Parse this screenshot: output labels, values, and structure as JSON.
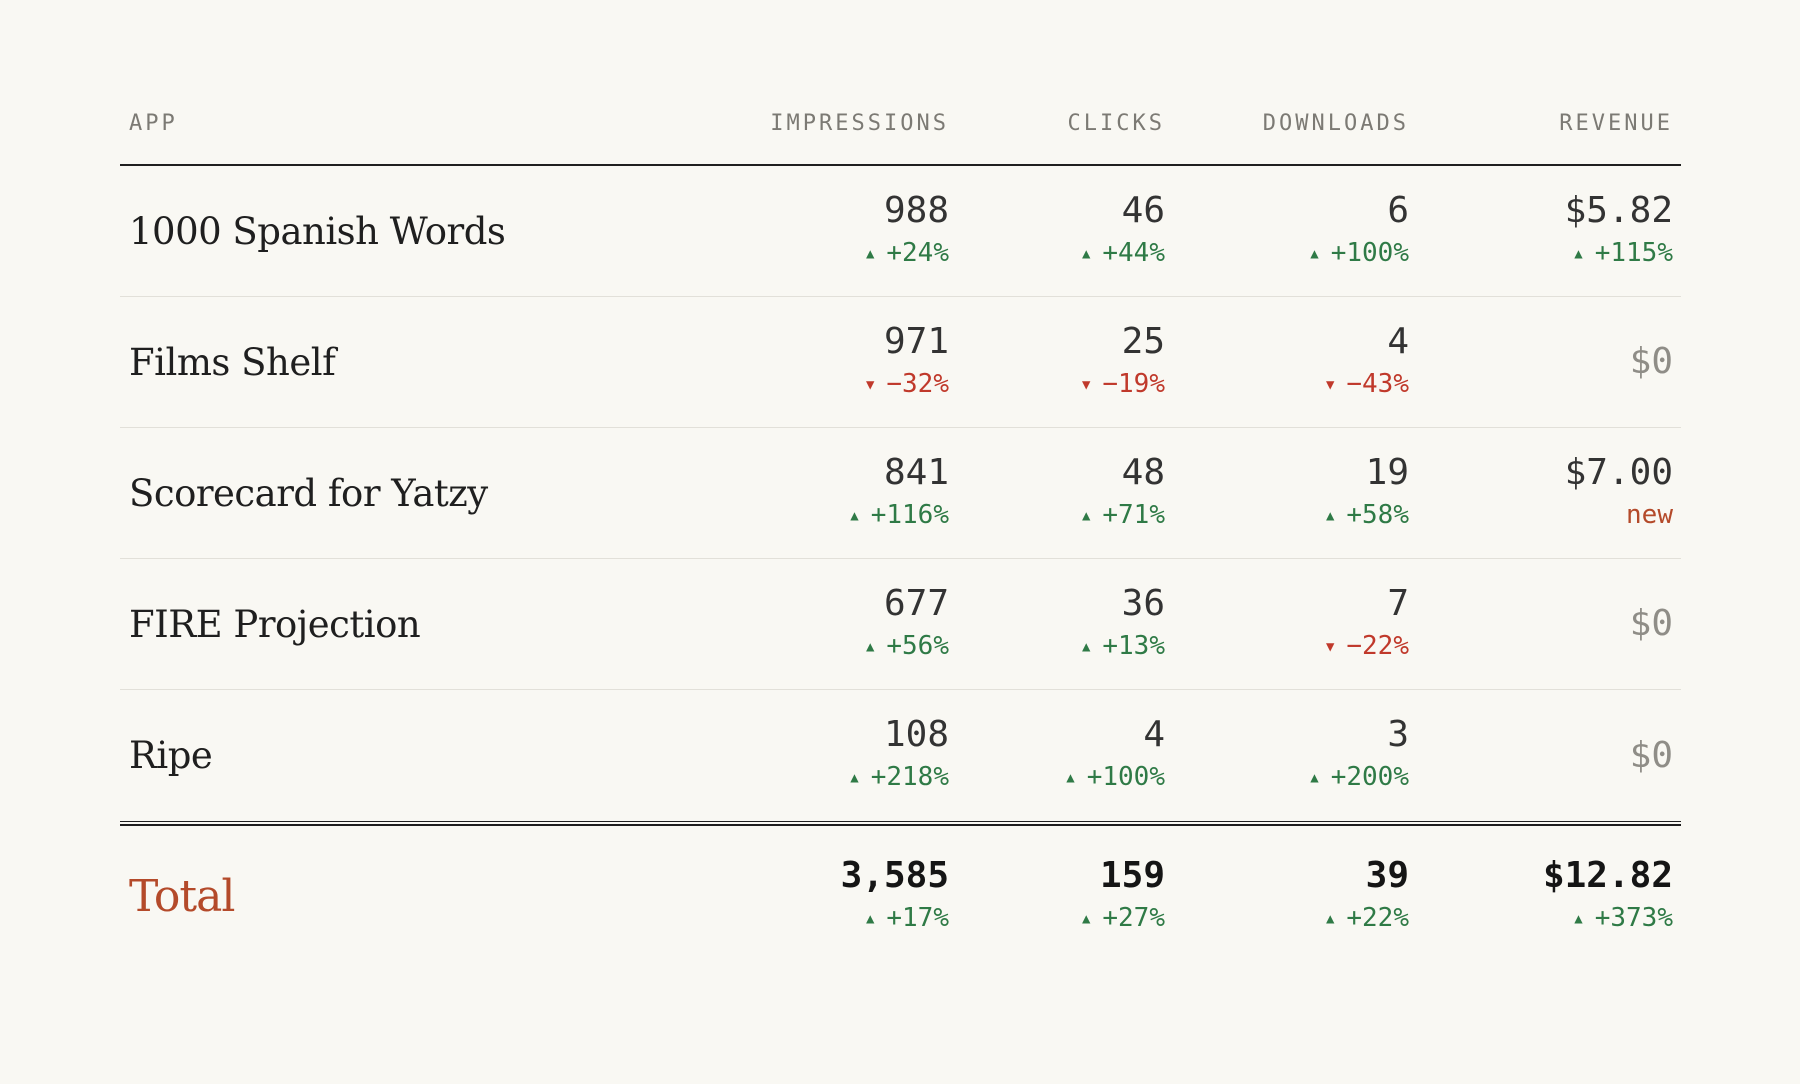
{
  "columns": {
    "app": "APP",
    "impressions": "IMPRESSIONS",
    "clicks": "CLICKS",
    "downloads": "DOWNLOADS",
    "revenue": "REVENUE"
  },
  "rows": [
    {
      "app": "1000 Spanish Words",
      "impressions": {
        "value": "988",
        "delta": "+24%",
        "dir": "up"
      },
      "clicks": {
        "value": "46",
        "delta": "+44%",
        "dir": "up"
      },
      "downloads": {
        "value": "6",
        "delta": "+100%",
        "dir": "up"
      },
      "revenue": {
        "value": "$5.82",
        "delta": "+115%",
        "dir": "up"
      }
    },
    {
      "app": "Films Shelf",
      "impressions": {
        "value": "971",
        "delta": "−32%",
        "dir": "down"
      },
      "clicks": {
        "value": "25",
        "delta": "−19%",
        "dir": "down"
      },
      "downloads": {
        "value": "4",
        "delta": "−43%",
        "dir": "down"
      },
      "revenue": {
        "value": "$0",
        "delta": "",
        "dir": "none"
      }
    },
    {
      "app": "Scorecard for Yatzy",
      "impressions": {
        "value": "841",
        "delta": "+116%",
        "dir": "up"
      },
      "clicks": {
        "value": "48",
        "delta": "+71%",
        "dir": "up"
      },
      "downloads": {
        "value": "19",
        "delta": "+58%",
        "dir": "up"
      },
      "revenue": {
        "value": "$7.00",
        "delta": "new",
        "dir": "new"
      }
    },
    {
      "app": "FIRE Projection",
      "impressions": {
        "value": "677",
        "delta": "+56%",
        "dir": "up"
      },
      "clicks": {
        "value": "36",
        "delta": "+13%",
        "dir": "up"
      },
      "downloads": {
        "value": "7",
        "delta": "−22%",
        "dir": "down"
      },
      "revenue": {
        "value": "$0",
        "delta": "",
        "dir": "none"
      }
    },
    {
      "app": "Ripe",
      "impressions": {
        "value": "108",
        "delta": "+218%",
        "dir": "up"
      },
      "clicks": {
        "value": "4",
        "delta": "+100%",
        "dir": "up"
      },
      "downloads": {
        "value": "3",
        "delta": "+200%",
        "dir": "up"
      },
      "revenue": {
        "value": "$0",
        "delta": "",
        "dir": "none"
      }
    }
  ],
  "total": {
    "label": "Total",
    "impressions": {
      "value": "3,585",
      "delta": "+17%",
      "dir": "up"
    },
    "clicks": {
      "value": "159",
      "delta": "+27%",
      "dir": "up"
    },
    "downloads": {
      "value": "39",
      "delta": "+22%",
      "dir": "up"
    },
    "revenue": {
      "value": "$12.82",
      "delta": "+373%",
      "dir": "up"
    }
  },
  "icons": {
    "up": "triangle-up-icon",
    "down": "triangle-down-icon"
  },
  "colors": {
    "positive": "#2f7a46",
    "negative": "#c0392b",
    "accent": "#b44a2a",
    "background": "#f9f8f3"
  }
}
